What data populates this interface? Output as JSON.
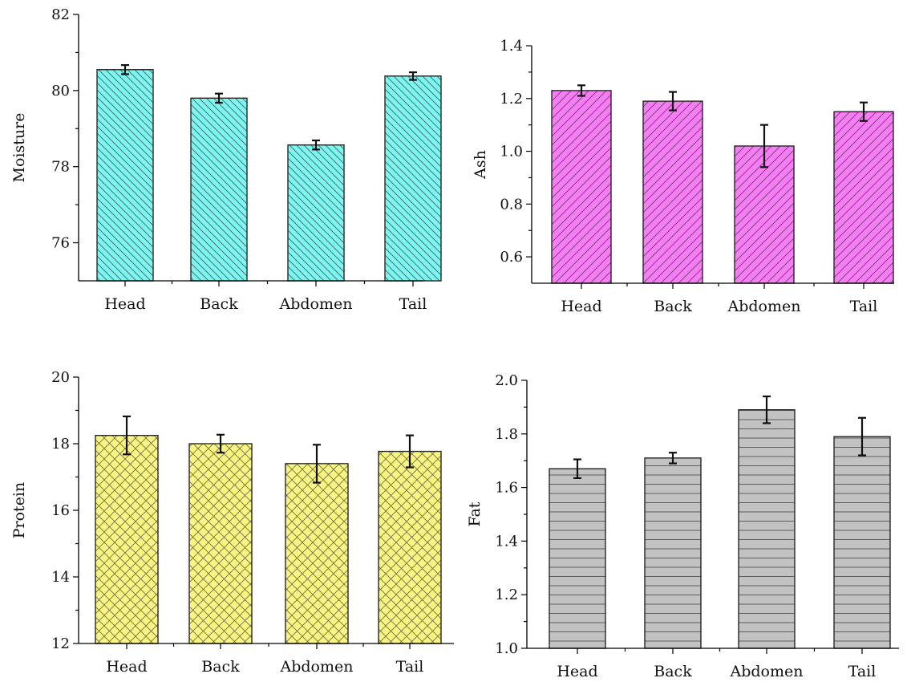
{
  "chart_data": [
    {
      "type": "bar",
      "categories": [
        "Head",
        "Back",
        "Abdomen",
        "Tail"
      ],
      "values": [
        80.55,
        79.8,
        78.57,
        80.38
      ],
      "errors": [
        0.12,
        0.12,
        0.12,
        0.1
      ],
      "ylabel": "Moisture",
      "ylim": [
        75,
        82
      ],
      "yticks": [
        76,
        78,
        80,
        82
      ],
      "color": "#7ff5f0",
      "pattern": "back-diagonal"
    },
    {
      "type": "bar",
      "categories": [
        "Head",
        "Back",
        "Abdomen",
        "Tail"
      ],
      "values": [
        1.23,
        1.19,
        1.02,
        1.15
      ],
      "errors": [
        0.02,
        0.035,
        0.08,
        0.035
      ],
      "ylabel": "Ash",
      "ylim": [
        0.5,
        1.4
      ],
      "yticks": [
        0.6,
        0.8,
        1.0,
        1.2,
        1.4
      ],
      "color": "#f77df5",
      "pattern": "forward-diagonal"
    },
    {
      "type": "bar",
      "categories": [
        "Head",
        "Back",
        "Abdomen",
        "Tail"
      ],
      "values": [
        18.25,
        18.0,
        17.4,
        17.77
      ],
      "errors": [
        0.57,
        0.27,
        0.57,
        0.48
      ],
      "ylabel": "Protein",
      "ylim": [
        12,
        20
      ],
      "yticks": [
        12,
        14,
        16,
        18,
        20
      ],
      "color": "#f9f585",
      "pattern": "crosshatch"
    },
    {
      "type": "bar",
      "categories": [
        "Head",
        "Back",
        "Abdomen",
        "Tail"
      ],
      "values": [
        1.67,
        1.71,
        1.89,
        1.79
      ],
      "errors": [
        0.035,
        0.02,
        0.05,
        0.07
      ],
      "ylabel": "Fat",
      "ylim": [
        1.0,
        2.0
      ],
      "yticks": [
        1.0,
        1.2,
        1.4,
        1.6,
        1.8,
        2.0
      ],
      "color": "#c2c2c2",
      "pattern": "horizontal"
    }
  ]
}
